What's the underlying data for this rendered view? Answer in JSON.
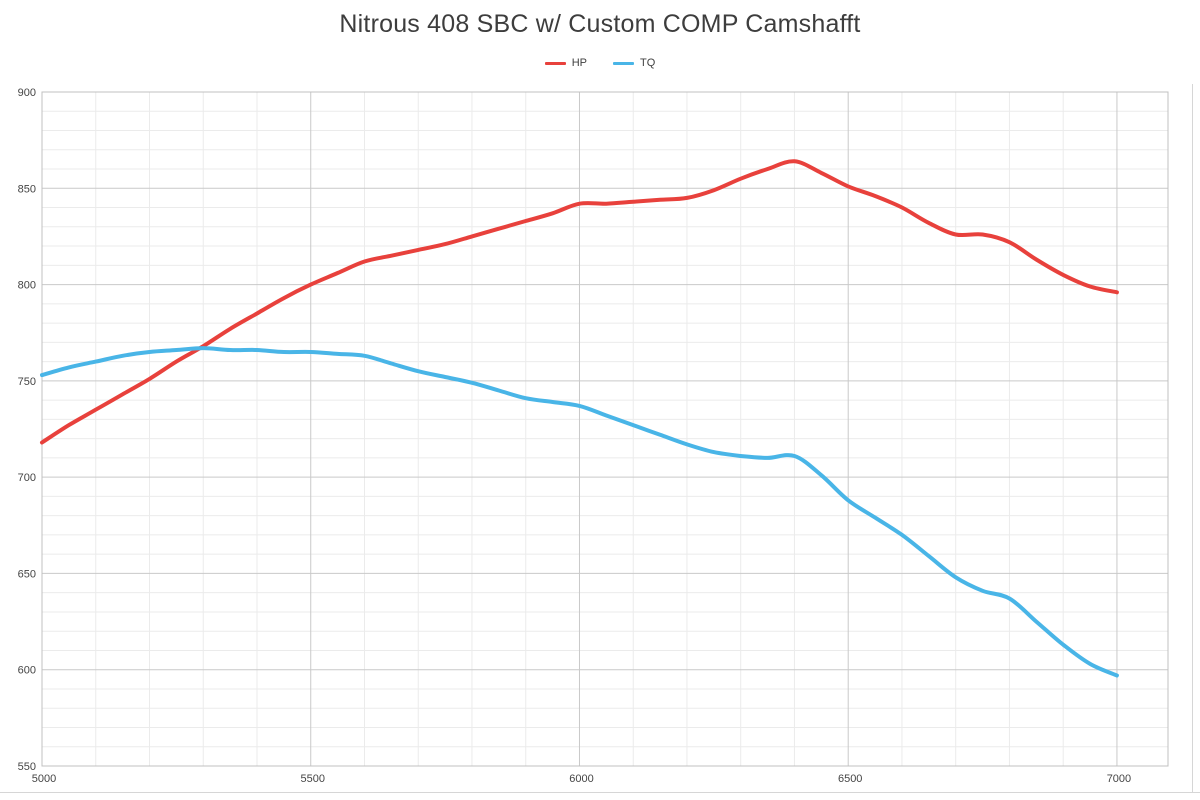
{
  "title": "Nitrous 408 SBC w/ Custom COMP Camshafft",
  "colors": {
    "hp": "#e8413c",
    "tq": "#49b5e7",
    "title_text": "#3d3d3d",
    "tick_text": "#444444",
    "grid_major": "#c9c9c9",
    "grid_minor": "#ebebeb",
    "plot_border": "#c0c0c0"
  },
  "chart_data": {
    "type": "line",
    "title": "Nitrous 408 SBC w/ Custom COMP Camshafft",
    "xlabel": "",
    "ylabel": "",
    "legend_position": "top",
    "grid": "major+minor",
    "xlim": [
      5000,
      7095
    ],
    "ylim": [
      550,
      900
    ],
    "x_major_ticks": [
      5000,
      5500,
      6000,
      6500,
      7000
    ],
    "y_major_ticks": [
      550,
      600,
      650,
      700,
      750,
      800,
      850,
      900
    ],
    "x_minor_step": 100,
    "y_minor_step": 10,
    "x": [
      5000,
      5050,
      5100,
      5150,
      5200,
      5250,
      5300,
      5350,
      5400,
      5450,
      5500,
      5550,
      5600,
      5650,
      5700,
      5750,
      5800,
      5850,
      5900,
      5950,
      6000,
      6050,
      6100,
      6150,
      6200,
      6250,
      6300,
      6350,
      6400,
      6450,
      6500,
      6550,
      6600,
      6650,
      6700,
      6750,
      6800,
      6850,
      6900,
      6950,
      7000
    ],
    "series": [
      {
        "name": "HP",
        "color": "#e8413c",
        "values": [
          718,
          727,
          735,
          743,
          751,
          760,
          768,
          777,
          785,
          793,
          800,
          806,
          812,
          815,
          818,
          821,
          825,
          829,
          833,
          837,
          842,
          842,
          843,
          844,
          845,
          849,
          855,
          860,
          864,
          858,
          851,
          846,
          840,
          832,
          826,
          826,
          822,
          813,
          805,
          799,
          796
        ]
      },
      {
        "name": "TQ",
        "color": "#49b5e7",
        "values": [
          753,
          757,
          760,
          763,
          765,
          766,
          767,
          766,
          766,
          765,
          765,
          764,
          763,
          759,
          755,
          752,
          749,
          745,
          741,
          739,
          737,
          732,
          727,
          722,
          717,
          713,
          711,
          710,
          711,
          701,
          688,
          679,
          670,
          659,
          648,
          641,
          637,
          625,
          613,
          603,
          597
        ]
      }
    ]
  }
}
